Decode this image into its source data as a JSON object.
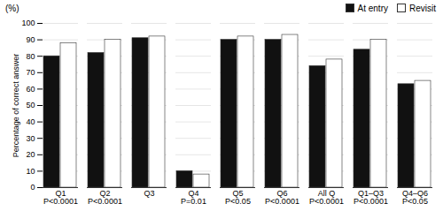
{
  "chart_data": {
    "type": "bar",
    "categories": [
      "Q1\nP<0.0001",
      "Q2\nP<0.0001",
      "Q3",
      "Q4\nP=0.01",
      "Q5\nP<0.05",
      "Q6\nP<0.0001",
      "All Q\nP<0.0001",
      "Q1–Q3\nP<0.0001",
      "Q4–Q6\nP<0.05"
    ],
    "series": [
      {
        "name": "At entry",
        "color": "#111111",
        "values": [
          80,
          82,
          91,
          10,
          90,
          90,
          74,
          84,
          63
        ]
      },
      {
        "name": "Revisit",
        "color": "#ffffff",
        "values": [
          88,
          90,
          92,
          8,
          92,
          93,
          78,
          90,
          65
        ]
      }
    ],
    "ylabel": "Percentage of correct answer",
    "annotations": [
      "(%)"
    ],
    "ylim": [
      0,
      100
    ],
    "yticks": [
      0,
      10,
      20,
      30,
      40,
      50,
      60,
      70,
      80,
      90,
      100
    ],
    "grid": true,
    "legend": "upper right"
  }
}
